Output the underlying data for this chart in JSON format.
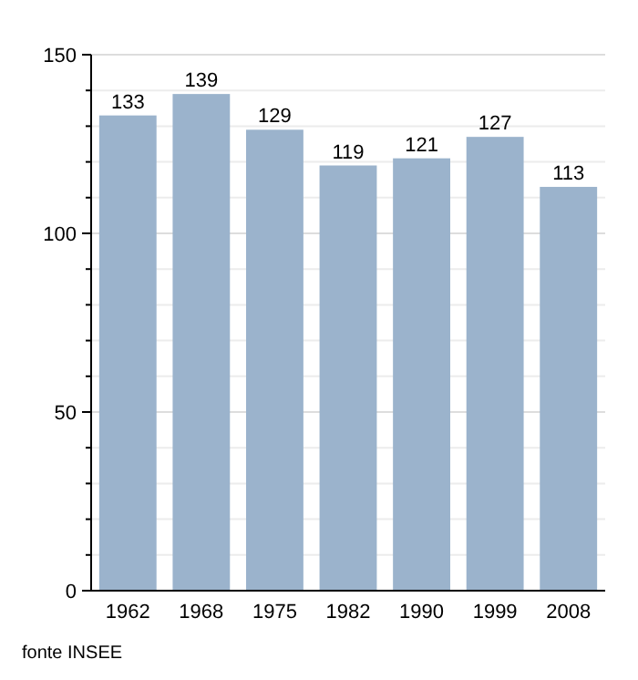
{
  "chart_data": {
    "type": "bar",
    "categories": [
      "1962",
      "1968",
      "1975",
      "1982",
      "1990",
      "1999",
      "2008"
    ],
    "values": [
      133,
      139,
      129,
      119,
      121,
      127,
      113
    ],
    "color": "#9bb3cc",
    "ylim": [
      0,
      150
    ],
    "yticks": [
      0,
      {
        "value": 10,
        "label": null
      },
      {
        "value": 20,
        "label": null
      },
      {
        "value": 30,
        "label": null
      },
      {
        "value": 40,
        "label": null
      },
      50,
      {
        "value": 60,
        "label": null
      },
      {
        "value": 70,
        "label": null
      },
      {
        "value": 80,
        "label": null
      },
      {
        "value": 90,
        "label": null
      },
      100,
      {
        "value": 110,
        "label": null
      },
      {
        "value": 120,
        "label": null
      },
      {
        "value": 130,
        "label": null
      },
      {
        "value": 140,
        "label": null
      },
      150
    ],
    "grid": true,
    "data_labels": true,
    "annotations": [
      "fonte INSEE"
    ]
  }
}
